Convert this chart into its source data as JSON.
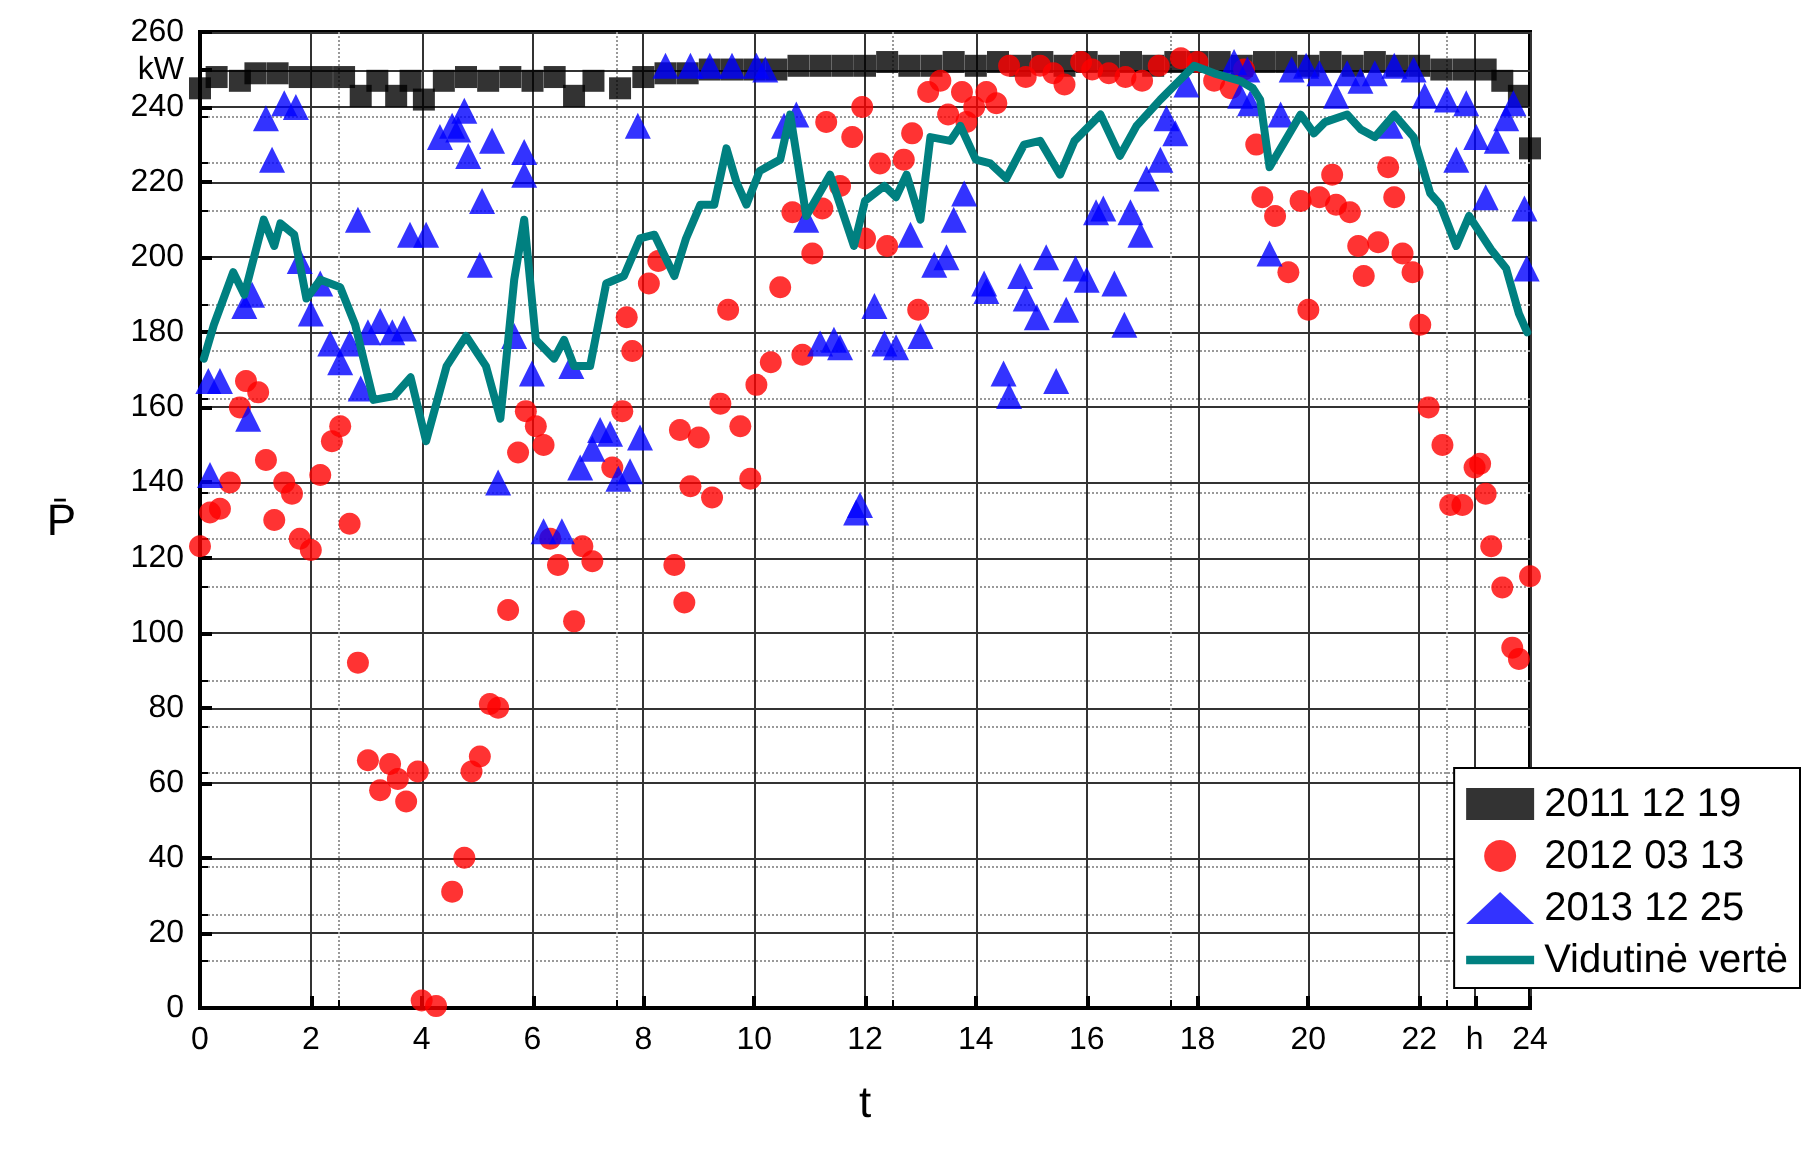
{
  "chart_data": {
    "type": "scatter",
    "xlabel": "t",
    "ylabel": "P̄",
    "xlim": [
      0,
      24
    ],
    "xticks": [
      0,
      2,
      4,
      6,
      8,
      10,
      12,
      14,
      16,
      18,
      20,
      22,
      {
        "value": 23,
        "label": "h"
      },
      24
    ],
    "ylim": [
      0,
      260
    ],
    "yticks": [
      0,
      20,
      40,
      60,
      80,
      100,
      120,
      140,
      160,
      180,
      200,
      220,
      240,
      {
        "value": 250,
        "label": "kW"
      },
      260
    ],
    "grid": true,
    "legend": "bottom right",
    "series": [
      {
        "name": "2011 12 19",
        "color": "#000000",
        "marker": "square",
        "x": [
          0,
          0.3,
          0.72,
          1.0,
          1.4,
          1.8,
          2.2,
          2.6,
          2.9,
          3.2,
          3.54,
          3.8,
          4.04,
          4.4,
          4.8,
          5.2,
          5.6,
          6.0,
          6.4,
          6.75,
          7.1,
          7.58,
          8.0,
          8.4,
          8.8,
          9.2,
          9.6,
          10.0,
          10.4,
          10.8,
          11.2,
          11.6,
          12.0,
          12.4,
          12.8,
          13.2,
          13.6,
          14.0,
          14.4,
          14.8,
          15.2,
          15.6,
          16.0,
          16.4,
          16.8,
          17.2,
          17.6,
          18.0,
          18.4,
          18.8,
          19.2,
          19.6,
          20.0,
          20.4,
          20.8,
          21.2,
          21.6,
          22.0,
          22.4,
          22.8,
          23.2,
          23.5,
          23.8,
          24
        ],
        "values": [
          245,
          248,
          247,
          249,
          249,
          248,
          248,
          248,
          243,
          247,
          243,
          247,
          242,
          247,
          248,
          247,
          248,
          247,
          248,
          243,
          247,
          245,
          248,
          249,
          249,
          250,
          250,
          250,
          250,
          251,
          251,
          251,
          251,
          252,
          251,
          251,
          252,
          251,
          252,
          251,
          252,
          251,
          252,
          251,
          252,
          251,
          252,
          252,
          252,
          251,
          252,
          252,
          251,
          252,
          251,
          252,
          251,
          251,
          250,
          250,
          250,
          247,
          243,
          229
        ]
      },
      {
        "name": "2012 03 13",
        "color": "#ff0000",
        "marker": "circle",
        "x": [
          0,
          0.18,
          0.36,
          0.54,
          0.72,
          0.83,
          1.05,
          1.19,
          1.34,
          1.52,
          1.66,
          1.8,
          2.0,
          2.17,
          2.38,
          2.53,
          2.7,
          2.85,
          3.03,
          3.25,
          3.43,
          3.57,
          3.72,
          3.93,
          4.0,
          4.26,
          4.55,
          4.77,
          4.9,
          5.05,
          5.23,
          5.38,
          5.56,
          5.74,
          5.88,
          6.06,
          6.2,
          6.32,
          6.46,
          6.75,
          6.9,
          7.08,
          7.44,
          7.62,
          7.7,
          7.8,
          8.1,
          8.27,
          8.56,
          8.66,
          8.74,
          8.85,
          9.0,
          9.24,
          9.39,
          9.53,
          9.75,
          9.93,
          10.04,
          10.3,
          10.47,
          10.69,
          10.87,
          11.05,
          11.23,
          11.3,
          11.55,
          11.77,
          11.95,
          12.0,
          12.27,
          12.4,
          12.7,
          12.85,
          12.96,
          13.14,
          13.36,
          13.5,
          13.75,
          13.83,
          13.97,
          14.19,
          14.37,
          14.6,
          14.9,
          15.16,
          15.4,
          15.6,
          15.9,
          16.1,
          16.4,
          16.7,
          17.0,
          17.3,
          17.7,
          18.0,
          18.3,
          18.6,
          18.84,
          19.06,
          19.17,
          19.4,
          19.64,
          19.86,
          20.0,
          20.2,
          20.43,
          20.5,
          20.75,
          20.9,
          21.0,
          21.26,
          21.44,
          21.55,
          21.7,
          21.88,
          22.02,
          22.17,
          22.42,
          22.56,
          22.78,
          23.0,
          23.1,
          23.2,
          23.3,
          23.5,
          23.68,
          23.8,
          24
        ],
        "values": [
          123,
          132,
          133,
          140,
          160,
          167,
          164,
          146,
          130,
          140,
          137,
          125,
          122,
          142,
          151,
          155,
          129,
          92,
          66,
          58,
          65,
          61,
          55,
          63,
          2,
          0.5,
          31,
          40,
          63,
          67,
          81,
          80,
          106,
          148,
          159,
          155,
          150,
          125,
          118,
          103,
          123,
          119,
          144,
          159,
          184,
          175,
          193,
          199,
          118,
          154,
          108,
          139,
          152,
          136,
          161,
          186,
          155,
          141,
          166,
          172,
          192,
          212,
          174,
          201,
          213,
          236,
          219,
          232,
          240,
          205,
          225,
          203,
          226,
          233,
          186,
          244,
          247,
          238,
          244,
          236,
          240,
          244,
          241,
          251,
          248,
          251,
          249,
          246,
          252,
          250,
          249,
          248,
          247,
          251,
          253,
          252,
          247,
          245,
          250,
          230,
          216,
          211,
          196,
          215,
          186,
          216,
          222,
          214,
          212,
          203,
          195,
          204,
          224,
          216,
          201,
          196,
          182,
          160,
          150,
          134,
          134,
          144,
          145,
          137,
          123,
          112,
          96,
          93,
          115
        ]
      },
      {
        "name": "2013 12 25",
        "color": "#0000ff",
        "marker": "triangle",
        "x": [
          0.15,
          0.18,
          0.36,
          0.8,
          0.87,
          0.94,
          1.19,
          1.3,
          1.52,
          1.73,
          1.8,
          2.0,
          2.17,
          2.35,
          2.53,
          2.7,
          2.85,
          2.9,
          3.03,
          3.25,
          3.47,
          3.68,
          3.79,
          4.08,
          4.33,
          4.55,
          4.66,
          4.77,
          4.84,
          5.05,
          5.09,
          5.27,
          5.38,
          5.67,
          5.85,
          5.85,
          5.99,
          6.2,
          6.53,
          6.7,
          6.86,
          7.08,
          7.22,
          7.4,
          7.55,
          7.76,
          7.9,
          7.94,
          8.4,
          8.85,
          9.2,
          9.6,
          10.04,
          10.2,
          10.54,
          10.76,
          10.94,
          11.19,
          11.44,
          11.55,
          11.84,
          11.91,
          12.17,
          12.35,
          12.56,
          12.82,
          13.0,
          13.25,
          13.47,
          13.6,
          13.79,
          14.15,
          14.19,
          14.5,
          14.6,
          14.8,
          14.9,
          15.1,
          15.27,
          15.45,
          15.63,
          15.8,
          16.0,
          16.17,
          16.3,
          16.5,
          16.68,
          16.79,
          16.97,
          17.08,
          17.33,
          17.44,
          17.6,
          17.8,
          18.66,
          18.77,
          18.9,
          18.95,
          19.3,
          19.5,
          19.7,
          19.96,
          20.2,
          20.5,
          20.7,
          20.94,
          21.2,
          21.48,
          21.55,
          21.9,
          22.1,
          22.5,
          22.67,
          22.85,
          23.03,
          23.2,
          23.4,
          23.57,
          23.7,
          23.9,
          23.94
        ],
        "values": [
          167,
          142,
          167,
          187,
          157,
          190,
          237,
          226,
          241,
          240,
          199,
          185,
          193,
          177,
          172,
          177,
          210,
          165,
          180,
          183,
          180,
          181,
          206,
          206,
          232,
          235,
          234,
          239,
          227,
          198,
          215,
          231,
          140,
          179,
          222,
          228,
          169,
          127,
          127,
          171,
          144,
          149,
          154,
          153,
          141,
          143,
          235,
          152,
          251,
          251,
          251,
          251,
          251,
          250,
          235,
          238,
          210,
          177,
          178,
          176,
          132,
          134,
          187,
          177,
          176,
          206,
          179,
          198,
          200,
          210,
          217,
          193,
          191,
          169,
          163,
          195,
          189,
          184,
          200,
          167,
          186,
          197,
          194,
          212,
          213,
          193,
          182,
          212,
          206,
          221,
          226,
          237,
          233,
          246,
          252,
          243,
          250,
          241,
          201,
          238,
          250,
          251,
          249,
          243,
          249,
          247,
          249,
          235,
          251,
          250,
          243,
          242,
          226,
          241,
          232,
          216,
          231,
          237,
          241,
          213,
          197
        ]
      },
      {
        "name": "Vidutinė vertė",
        "type": "line",
        "color": "#008080",
        "marker": "none",
        "line_style": "solid",
        "x": [
          0.07,
          0.25,
          0.6,
          0.8,
          1.15,
          1.34,
          1.45,
          1.7,
          1.92,
          2.17,
          2.53,
          2.8,
          3.13,
          3.5,
          3.8,
          4.08,
          4.45,
          4.8,
          5.16,
          5.42,
          5.67,
          5.85,
          6.06,
          6.39,
          6.57,
          6.75,
          7.04,
          7.33,
          7.65,
          7.94,
          8.2,
          8.56,
          8.77,
          9.03,
          9.28,
          9.5,
          9.68,
          9.86,
          10.1,
          10.47,
          10.65,
          10.94,
          11.37,
          11.8,
          12.0,
          12.35,
          12.56,
          12.75,
          13.0,
          13.18,
          13.54,
          13.72,
          14.0,
          14.26,
          14.55,
          14.87,
          15.16,
          15.52,
          15.78,
          16.25,
          16.6,
          16.9,
          17.33,
          17.94,
          18.3,
          18.77,
          19.0,
          19.13,
          19.3,
          19.86,
          20.1,
          20.3,
          20.7,
          20.95,
          21.2,
          21.55,
          21.9,
          22.2,
          22.38,
          22.67,
          22.9,
          23.3,
          23.57,
          23.8,
          23.95
        ],
        "values": [
          173,
          182,
          196,
          190,
          210,
          203,
          209,
          206,
          189,
          194,
          192,
          182,
          162,
          163,
          168,
          151,
          171,
          179,
          171,
          157,
          194,
          210,
          178,
          173,
          178,
          171,
          171,
          193,
          195,
          205,
          206,
          195,
          205,
          214,
          214,
          229,
          220,
          214,
          223,
          226,
          238,
          211,
          222,
          203,
          215,
          219,
          216,
          222,
          210,
          232,
          231,
          235,
          226,
          225,
          221,
          230,
          231,
          222,
          231,
          238,
          227,
          235,
          242,
          251,
          249,
          247,
          245,
          242,
          224,
          238,
          233,
          236,
          238,
          234,
          232,
          238,
          232,
          217,
          214,
          203,
          211,
          202,
          197,
          185,
          180
        ]
      }
    ]
  }
}
